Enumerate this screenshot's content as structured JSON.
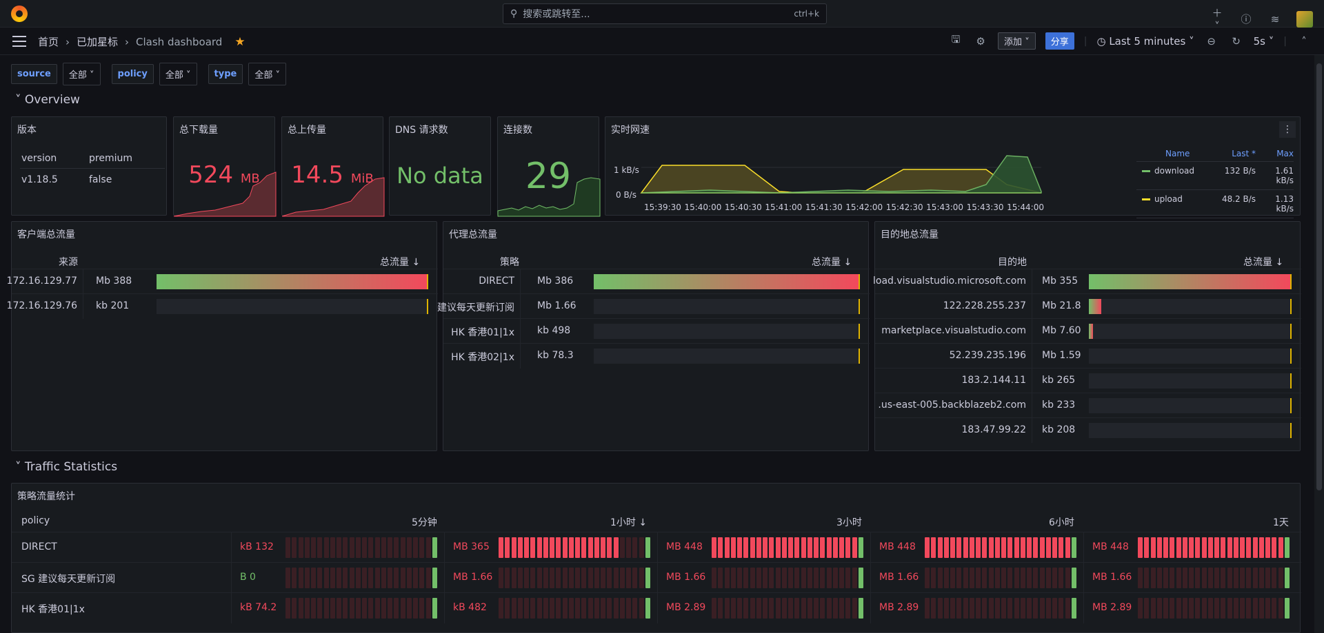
{
  "topbar": {
    "search_placeholder": "搜索或跳转至...",
    "search_shortcut": "ctrl+k",
    "icons": [
      "plus-icon",
      "help-icon",
      "rss-icon",
      "avatar"
    ]
  },
  "breadcrumb": {
    "home": "首页",
    "starred": "已加星标",
    "current": "Clash dashboard"
  },
  "toolbar": {
    "add_label": "添加",
    "share_label": "分享",
    "time_range": "Last 5 minutes",
    "refresh_interval": "5s"
  },
  "variables": [
    {
      "label": "source",
      "value": "全部"
    },
    {
      "label": "policy",
      "value": "全部"
    },
    {
      "label": "type",
      "value": "全部"
    }
  ],
  "rows": {
    "overview": "Overview",
    "traffic": "Traffic Statistics"
  },
  "panels": {
    "version": {
      "title": "版本",
      "headers": [
        "version",
        "premium"
      ],
      "values": [
        "v1.18.5",
        "false"
      ]
    },
    "download": {
      "title": "总下载量",
      "value": "524",
      "unit": "MB"
    },
    "upload": {
      "title": "总上传量",
      "value": "14.5",
      "unit": "MiB"
    },
    "dns": {
      "title": "DNS 请求数",
      "value": "No data"
    },
    "connections": {
      "title": "连接数",
      "value": "29"
    },
    "speed": {
      "title": "实时网速",
      "yticks": [
        "1 kB/s",
        "0 B/s"
      ],
      "xticks": [
        "15:39:30",
        "15:40:00",
        "15:40:30",
        "15:41:00",
        "15:41:30",
        "15:42:00",
        "15:42:30",
        "15:43:00",
        "15:43:30",
        "15:44:00"
      ],
      "legend_headers": [
        "Name",
        "Last *",
        "Max"
      ],
      "legend": [
        {
          "name": "download",
          "last": "132 B/s",
          "max": "1.61 kB/s",
          "color": "#73bf69"
        },
        {
          "name": "upload",
          "last": "48.2 B/s",
          "max": "1.13 kB/s",
          "color": "#fade2a"
        }
      ]
    },
    "client": {
      "title": "客户端总流量",
      "col1": "来源",
      "col2": "总流量",
      "rows": [
        {
          "name": "172.16.129.77",
          "value": "Mb 388",
          "frac": 1.0
        },
        {
          "name": "172.16.129.76",
          "value": "kb 201",
          "frac": 0.0
        }
      ]
    },
    "proxy": {
      "title": "代理总流量",
      "col1": "策略",
      "col2": "总流量",
      "rows": [
        {
          "name": "DIRECT",
          "value": "Mb 386",
          "frac": 1.0
        },
        {
          "name": "建议每天更新订阅",
          "value": "Mb 1.66",
          "frac": 0.0
        },
        {
          "name": "HK 香港01|1x",
          "value": "kb 498",
          "frac": 0.0
        },
        {
          "name": "HK 香港02|1x",
          "value": "kb 78.3",
          "frac": 0.0
        }
      ]
    },
    "dest": {
      "title": "目的地总流量",
      "col1": "目的地",
      "col2": "总流量",
      "rows": [
        {
          "name": "load.visualstudio.microsoft.com",
          "value": "Mb 355",
          "frac": 1.0
        },
        {
          "name": "122.228.255.237",
          "value": "Mb 21.8",
          "frac": 0.06
        },
        {
          "name": "marketplace.visualstudio.com",
          "value": "Mb 7.60",
          "frac": 0.02
        },
        {
          "name": "52.239.235.196",
          "value": "Mb 1.59",
          "frac": 0.0
        },
        {
          "name": "183.2.144.11",
          "value": "kb 265",
          "frac": 0.0
        },
        {
          "name": ".us-east-005.backblazeb2.com",
          "value": "kb 233",
          "frac": 0.0
        },
        {
          "name": "183.47.99.22",
          "value": "kb 208",
          "frac": 0.0
        }
      ]
    },
    "policy_stats": {
      "title": "策略流量统计",
      "headers": [
        "policy",
        "5分钟",
        "1小时",
        "3小时",
        "6小时",
        "1天"
      ],
      "rows": [
        {
          "name": "DIRECT",
          "cells": [
            {
              "v": "kB 132",
              "c": "#f2495c",
              "frac": 0.02
            },
            {
              "v": "MB 365",
              "c": "#f2495c",
              "frac": 0.81
            },
            {
              "v": "MB 448",
              "c": "#f2495c",
              "frac": 1.0
            },
            {
              "v": "MB 448",
              "c": "#f2495c",
              "frac": 1.0
            },
            {
              "v": "MB 448",
              "c": "#f2495c",
              "frac": 1.0
            }
          ]
        },
        {
          "name": "SG 建议每天更新订阅",
          "cells": [
            {
              "v": "B 0",
              "c": "#73bf69",
              "frac": 0.0
            },
            {
              "v": "MB 1.66",
              "c": "#f2495c",
              "frac": 0.0
            },
            {
              "v": "MB 1.66",
              "c": "#f2495c",
              "frac": 0.0
            },
            {
              "v": "MB 1.66",
              "c": "#f2495c",
              "frac": 0.0
            },
            {
              "v": "MB 1.66",
              "c": "#f2495c",
              "frac": 0.0
            }
          ]
        },
        {
          "name": "HK 香港01|1x",
          "cells": [
            {
              "v": "kB 74.2",
              "c": "#f2495c",
              "frac": 0.0
            },
            {
              "v": "kB 482",
              "c": "#f2495c",
              "frac": 0.0
            },
            {
              "v": "MB 2.89",
              "c": "#f2495c",
              "frac": 0.0
            },
            {
              "v": "MB 2.89",
              "c": "#f2495c",
              "frac": 0.0
            },
            {
              "v": "MB 2.89",
              "c": "#f2495c",
              "frac": 0.0
            }
          ]
        }
      ]
    }
  }
}
